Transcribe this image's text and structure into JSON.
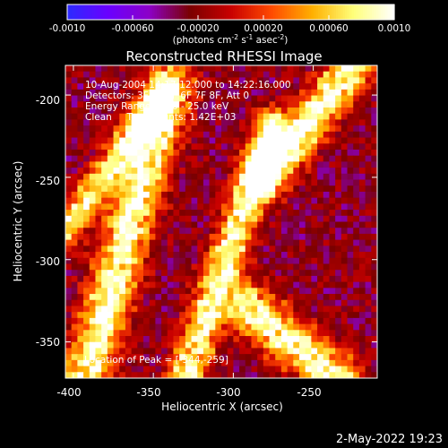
{
  "chart_data": {
    "type": "heatmap",
    "title": "Reconstructed RHESSI Image",
    "xlabel": "Heliocentric X (arcsec)",
    "ylabel": "Heliocentric Y (arcsec)",
    "xlim": [
      -405,
      -210
    ],
    "ylim": [
      -372,
      -182
    ],
    "x_ticks": [
      "-400",
      "-350",
      "-300",
      "-250"
    ],
    "y_ticks": [
      "-200",
      "-250",
      "-300",
      "-350"
    ],
    "x_tick_values": [
      -400,
      -350,
      -300,
      -250
    ],
    "y_tick_values": [
      -200,
      -250,
      -300,
      -350
    ],
    "colorbar": {
      "range": [
        -0.001,
        0.001
      ],
      "ticks": [
        "-0.0010",
        "-0.00060",
        "-0.00020",
        "0.00020",
        "0.00060",
        "0.0010"
      ],
      "tick_values": [
        -0.001,
        -0.0006,
        -0.0002,
        0.0002,
        0.0006,
        0.001
      ],
      "unit_label": "(photons cm",
      "unit_exp1": "-2",
      "unit_mid": " s",
      "unit_exp2": "-1",
      "unit_mid2": " asec",
      "unit_exp3": "-2",
      "unit_end": ")"
    },
    "info_lines": [
      "10-Aug-2004 14:17:12.000 to 14:22:16.000",
      "Detectors: 3F 4F 5F 6F 7F 8F, Att 0",
      "Energy Range: 12.0 - 25.0 keV",
      "Clean     Total counts: 1.42E+03"
    ],
    "peak_label": "Location of Peak = [-344,-259]",
    "peak": [
      -344,
      -259
    ],
    "bright_ridges": [
      {
        "x0": -392,
        "y0": -372,
        "x1": -340,
        "y1": -195,
        "peak_value": 0.001,
        "width": 10
      },
      {
        "x0": -330,
        "y0": -372,
        "x1": -275,
        "y1": -220,
        "peak_value": 0.0009,
        "width": 8
      },
      {
        "x0": -290,
        "y0": -330,
        "x1": -235,
        "y1": -372,
        "peak_value": 0.00095,
        "width": 10
      },
      {
        "x0": -280,
        "y0": -250,
        "x1": -225,
        "y1": -182,
        "peak_value": 0.001,
        "width": 9
      },
      {
        "x0": -405,
        "y0": -282,
        "x1": -352,
        "y1": -210,
        "peak_value": 0.0008,
        "width": 7
      }
    ]
  },
  "footer": {
    "date": "2-May-2022 19:23"
  },
  "colors": {
    "background": "#000000",
    "text": "#ffffff",
    "colormap": [
      "#2b2bff",
      "#6a00ff",
      "#8c00c8",
      "#7a0000",
      "#c80000",
      "#ff4a00",
      "#ffb000",
      "#ffff7a",
      "#ffffff"
    ]
  }
}
